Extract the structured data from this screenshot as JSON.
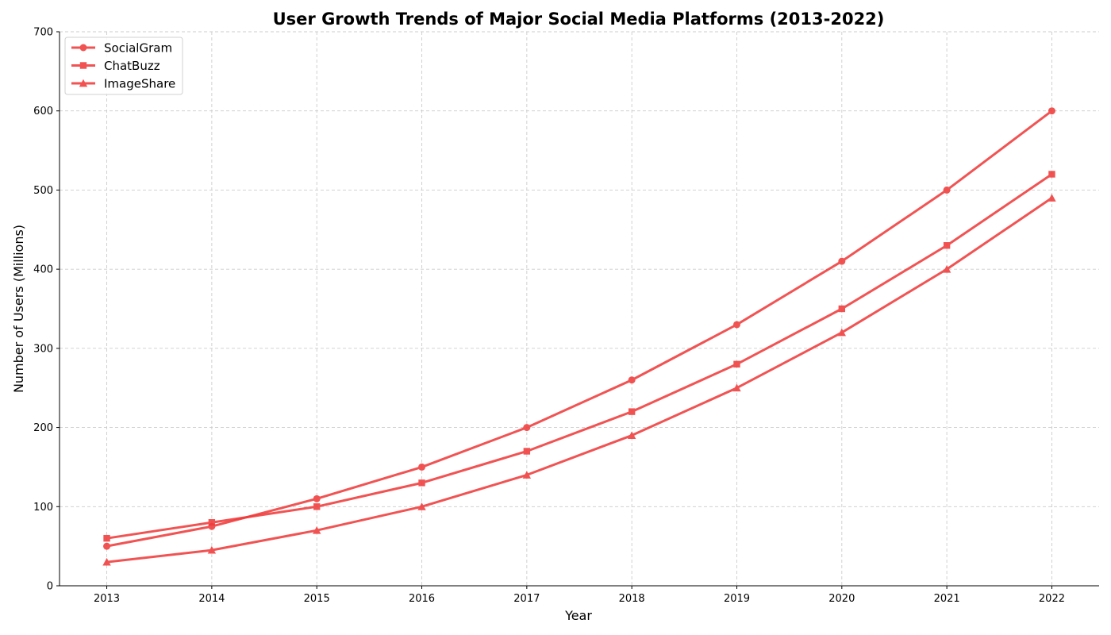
{
  "chart_data": {
    "type": "line",
    "title": "User Growth Trends of Major Social Media Platforms (2013-2022)",
    "xlabel": "Year",
    "ylabel": "Number of Users (Millions)",
    "x": [
      2013,
      2014,
      2015,
      2016,
      2017,
      2018,
      2019,
      2020,
      2021,
      2022
    ],
    "xticks": [
      "2013",
      "2014",
      "2015",
      "2016",
      "2017",
      "2018",
      "2019",
      "2020",
      "2021",
      "2022"
    ],
    "ylim": [
      0,
      700
    ],
    "yticks": [
      0,
      100,
      200,
      300,
      400,
      500,
      600,
      700
    ],
    "grid": true,
    "legend_position": "top-left",
    "line_color": "#f03c3c",
    "series": [
      {
        "name": "SocialGram",
        "marker": "circle",
        "values": [
          50,
          75,
          110,
          150,
          200,
          260,
          330,
          410,
          500,
          600
        ]
      },
      {
        "name": "ChatBuzz",
        "marker": "square",
        "values": [
          60,
          80,
          100,
          130,
          170,
          220,
          280,
          350,
          430,
          520
        ]
      },
      {
        "name": "ImageShare",
        "marker": "triangle",
        "values": [
          30,
          45,
          70,
          100,
          140,
          190,
          250,
          320,
          400,
          490
        ]
      }
    ]
  }
}
